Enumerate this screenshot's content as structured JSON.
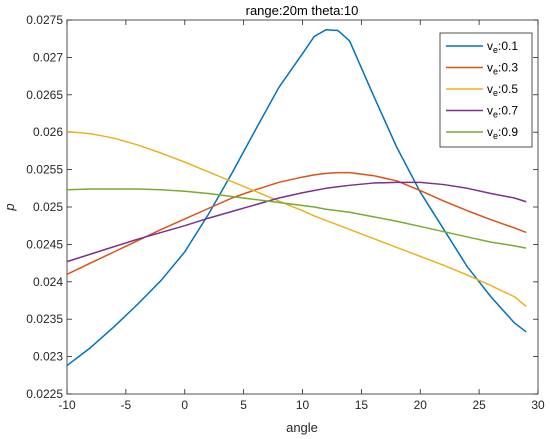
{
  "chart_data": {
    "type": "line",
    "title": "range:20m theta:10",
    "xlabel": "angle",
    "ylabel": "p",
    "xlim": [
      -10,
      30
    ],
    "ylim": [
      0.0225,
      0.0275
    ],
    "xticks": [
      "-10",
      "-5",
      "0",
      "5",
      "10",
      "15",
      "20",
      "25",
      "30"
    ],
    "yticks": [
      "0.0225",
      "0.023",
      "0.0235",
      "0.024",
      "0.0245",
      "0.025",
      "0.0255",
      "0.026",
      "0.0265",
      "0.027",
      "0.0275"
    ],
    "grid": false,
    "legend_position": "top-right",
    "x": [
      -10,
      -8,
      -6,
      -4,
      -2,
      0,
      2,
      4,
      6,
      8,
      10,
      11,
      12,
      13,
      14,
      16,
      18,
      20,
      22,
      24,
      26,
      28,
      29
    ],
    "series": [
      {
        "legend_prefix": "v",
        "legend_sub": "e",
        "legend_suffix": ":0.1",
        "color": "#0072BD",
        "values": [
          0.02288,
          0.02312,
          0.0234,
          0.0237,
          0.02402,
          0.0244,
          0.0249,
          0.02545,
          0.02603,
          0.0266,
          0.02705,
          0.02728,
          0.02737,
          0.02736,
          0.02722,
          0.0265,
          0.0258,
          0.0252,
          0.0247,
          0.0242,
          0.0238,
          0.02345,
          0.02333
        ]
      },
      {
        "legend_prefix": "v",
        "legend_sub": "e",
        "legend_suffix": ":0.3",
        "color": "#D95319",
        "values": [
          0.0241,
          0.02425,
          0.0244,
          0.02455,
          0.0247,
          0.02484,
          0.02498,
          0.02512,
          0.02523,
          0.02533,
          0.0254,
          0.02543,
          0.02545,
          0.02546,
          0.02546,
          0.02542,
          0.02535,
          0.02522,
          0.02508,
          0.02495,
          0.02483,
          0.02472,
          0.02466
        ]
      },
      {
        "legend_prefix": "v",
        "legend_sub": "e",
        "legend_suffix": ":0.5",
        "color": "#EDB120",
        "values": [
          0.02601,
          0.02598,
          0.02592,
          0.02583,
          0.02572,
          0.0256,
          0.02547,
          0.02534,
          0.02521,
          0.02508,
          0.02495,
          0.02488,
          0.02482,
          0.02476,
          0.0247,
          0.02458,
          0.02446,
          0.02434,
          0.02422,
          0.02409,
          0.02395,
          0.0238,
          0.02367
        ]
      },
      {
        "legend_prefix": "v",
        "legend_sub": "e",
        "legend_suffix": ":0.7",
        "color": "#7E2F8E",
        "values": [
          0.02427,
          0.02437,
          0.02447,
          0.02457,
          0.02466,
          0.02475,
          0.02485,
          0.02494,
          0.02503,
          0.02512,
          0.02519,
          0.02522,
          0.02525,
          0.02527,
          0.02529,
          0.02532,
          0.02533,
          0.02533,
          0.0253,
          0.02525,
          0.02518,
          0.02512,
          0.02507
        ]
      },
      {
        "legend_prefix": "v",
        "legend_sub": "e",
        "legend_suffix": ":0.9",
        "color": "#77AC30",
        "values": [
          0.02523,
          0.02524,
          0.02524,
          0.02524,
          0.02523,
          0.02521,
          0.02518,
          0.02514,
          0.0251,
          0.02506,
          0.02502,
          0.025,
          0.02497,
          0.02495,
          0.02493,
          0.02487,
          0.02481,
          0.02474,
          0.02467,
          0.0246,
          0.02453,
          0.02448,
          0.02445
        ]
      }
    ]
  }
}
